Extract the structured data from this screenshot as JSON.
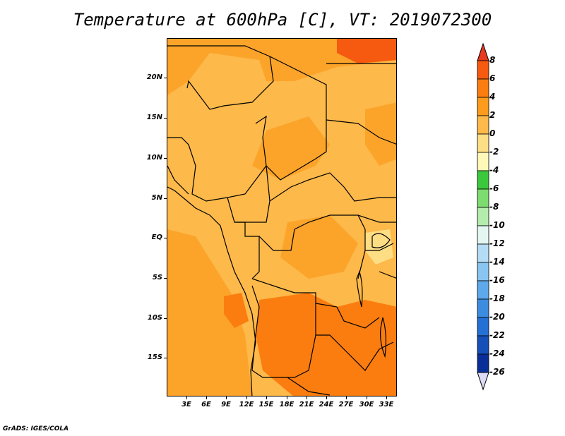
{
  "title": "Temperature at 600hPa [C], VT: 2019072300",
  "credit": "GrADS: IGES/COLA",
  "map": {
    "lat_labels": [
      "20N",
      "15N",
      "10N",
      "5N",
      "EQ",
      "5S",
      "10S",
      "15S"
    ],
    "lon_labels": [
      "3E",
      "6E",
      "9E",
      "12E",
      "15E",
      "18E",
      "21E",
      "24E",
      "27E",
      "30E",
      "33E"
    ]
  },
  "colorbar": {
    "labels": [
      "8",
      "6",
      "4",
      "2",
      "0",
      "-2",
      "-4",
      "-6",
      "-8",
      "-10",
      "-12",
      "-14",
      "-16",
      "-18",
      "-20",
      "-22",
      "-24",
      "-26"
    ],
    "colors": [
      "#e8381e",
      "#f55a10",
      "#fb7d0f",
      "#fc9b1c",
      "#fdb94a",
      "#fede84",
      "#fff8b8",
      "#3cc83c",
      "#7ddc70",
      "#b4ecac",
      "#e4f6f0",
      "#b4dcf4",
      "#8ac4f0",
      "#5ea8ec",
      "#3c8ce0",
      "#2470d4",
      "#1450b8",
      "#0a2e98",
      "#081a6c",
      "#dcdcf8"
    ],
    "values": [
      8,
      6,
      4,
      2,
      0,
      -2,
      -4,
      -6,
      -8,
      -10,
      -12,
      -14,
      -16,
      -18,
      -20,
      -22,
      -24,
      -26
    ]
  }
}
